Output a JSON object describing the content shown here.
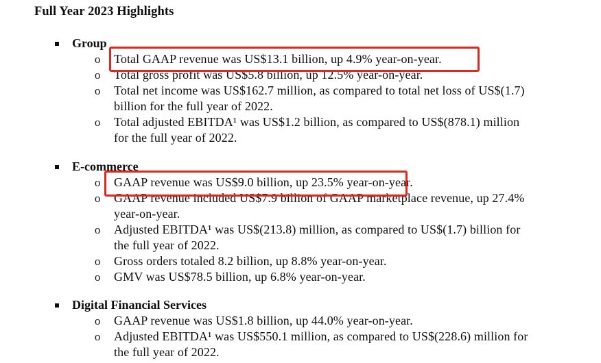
{
  "title": "Full Year 2023 Highlights",
  "highlight": {
    "color": "#e0281c"
  },
  "sections": [
    {
      "label": "Group",
      "items": [
        {
          "highlighted": true,
          "lines": [
            "Total GAAP revenue was US$13.1 billion, up 4.9% year-on-year."
          ]
        },
        {
          "highlighted": false,
          "lines": [
            "Total gross profit was US$5.8 billion, up 12.5% year-on-year."
          ]
        },
        {
          "highlighted": false,
          "lines": [
            "Total net income was US$162.7 million, as compared to total net loss of US$(1.7)",
            "billion for the full year of 2022."
          ]
        },
        {
          "highlighted": false,
          "lines": [
            "Total adjusted EBITDA¹ was US$1.2 billion, as compared to US$(878.1) million",
            "for the full year of 2022."
          ]
        }
      ]
    },
    {
      "label": "E-commerce",
      "items": [
        {
          "highlighted": true,
          "lines": [
            "GAAP revenue was US$9.0 billion, up 23.5% year-on-year."
          ]
        },
        {
          "highlighted": false,
          "lines": [
            "GAAP revenue included US$7.9 billion of GAAP marketplace revenue, up 27.4%",
            "year-on-year."
          ]
        },
        {
          "highlighted": false,
          "lines": [
            "Adjusted EBITDA¹ was US$(213.8) million, as compared to US$(1.7) billion for",
            "the full year of 2022."
          ]
        },
        {
          "highlighted": false,
          "lines": [
            "Gross orders totaled 8.2 billion, up 8.8% year-on-year."
          ]
        },
        {
          "highlighted": false,
          "lines": [
            "GMV was US$78.5 billion, up 6.8% year-on-year."
          ]
        }
      ]
    },
    {
      "label": "Digital Financial Services",
      "items": [
        {
          "highlighted": false,
          "lines": [
            "GAAP revenue was US$1.8 billion, up 44.0% year-on-year."
          ]
        },
        {
          "highlighted": false,
          "lines": [
            "Adjusted EBITDA¹ was US$550.1 million, as compared to US$(228.6) million for",
            "the full year of 2022."
          ]
        }
      ]
    }
  ]
}
